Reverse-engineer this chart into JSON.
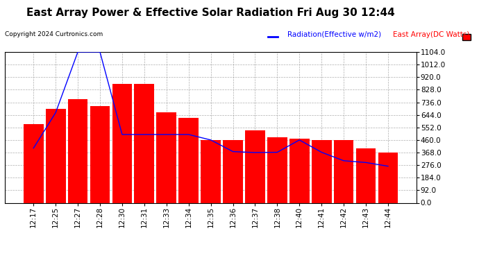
{
  "title": "East Array Power & Effective Solar Radiation Fri Aug 30 12:44",
  "copyright": "Copyright 2024 Curtronics.com",
  "legend_radiation": "Radiation(Effective w/m2)",
  "legend_array": "East Array(DC Watts)",
  "x_labels": [
    "12:17",
    "12:25",
    "12:27",
    "12:28",
    "12:30",
    "12:31",
    "12:33",
    "12:34",
    "12:35",
    "12:36",
    "12:37",
    "12:38",
    "12:40",
    "12:41",
    "12:42",
    "12:43",
    "12:44"
  ],
  "bar_values": [
    575,
    690,
    760,
    710,
    870,
    870,
    660,
    620,
    460,
    460,
    530,
    480,
    470,
    460,
    460,
    400,
    368
  ],
  "line_values": [
    400,
    660,
    1104,
    1104,
    500,
    500,
    500,
    500,
    460,
    375,
    368,
    370,
    460,
    370,
    308,
    295,
    268
  ],
  "bar_color": "#ff0000",
  "line_color": "#0000ff",
  "background_color": "#ffffff",
  "grid_color": "#999999",
  "ymin": 0.0,
  "ymax": 1104.0,
  "yticks": [
    0.0,
    92.0,
    184.0,
    276.0,
    368.0,
    460.0,
    552.0,
    644.0,
    736.0,
    828.0,
    920.0,
    1012.0,
    1104.0
  ],
  "title_fontsize": 11,
  "tick_fontsize": 7.5,
  "copyright_fontsize": 6.5,
  "legend_fontsize": 7.5
}
